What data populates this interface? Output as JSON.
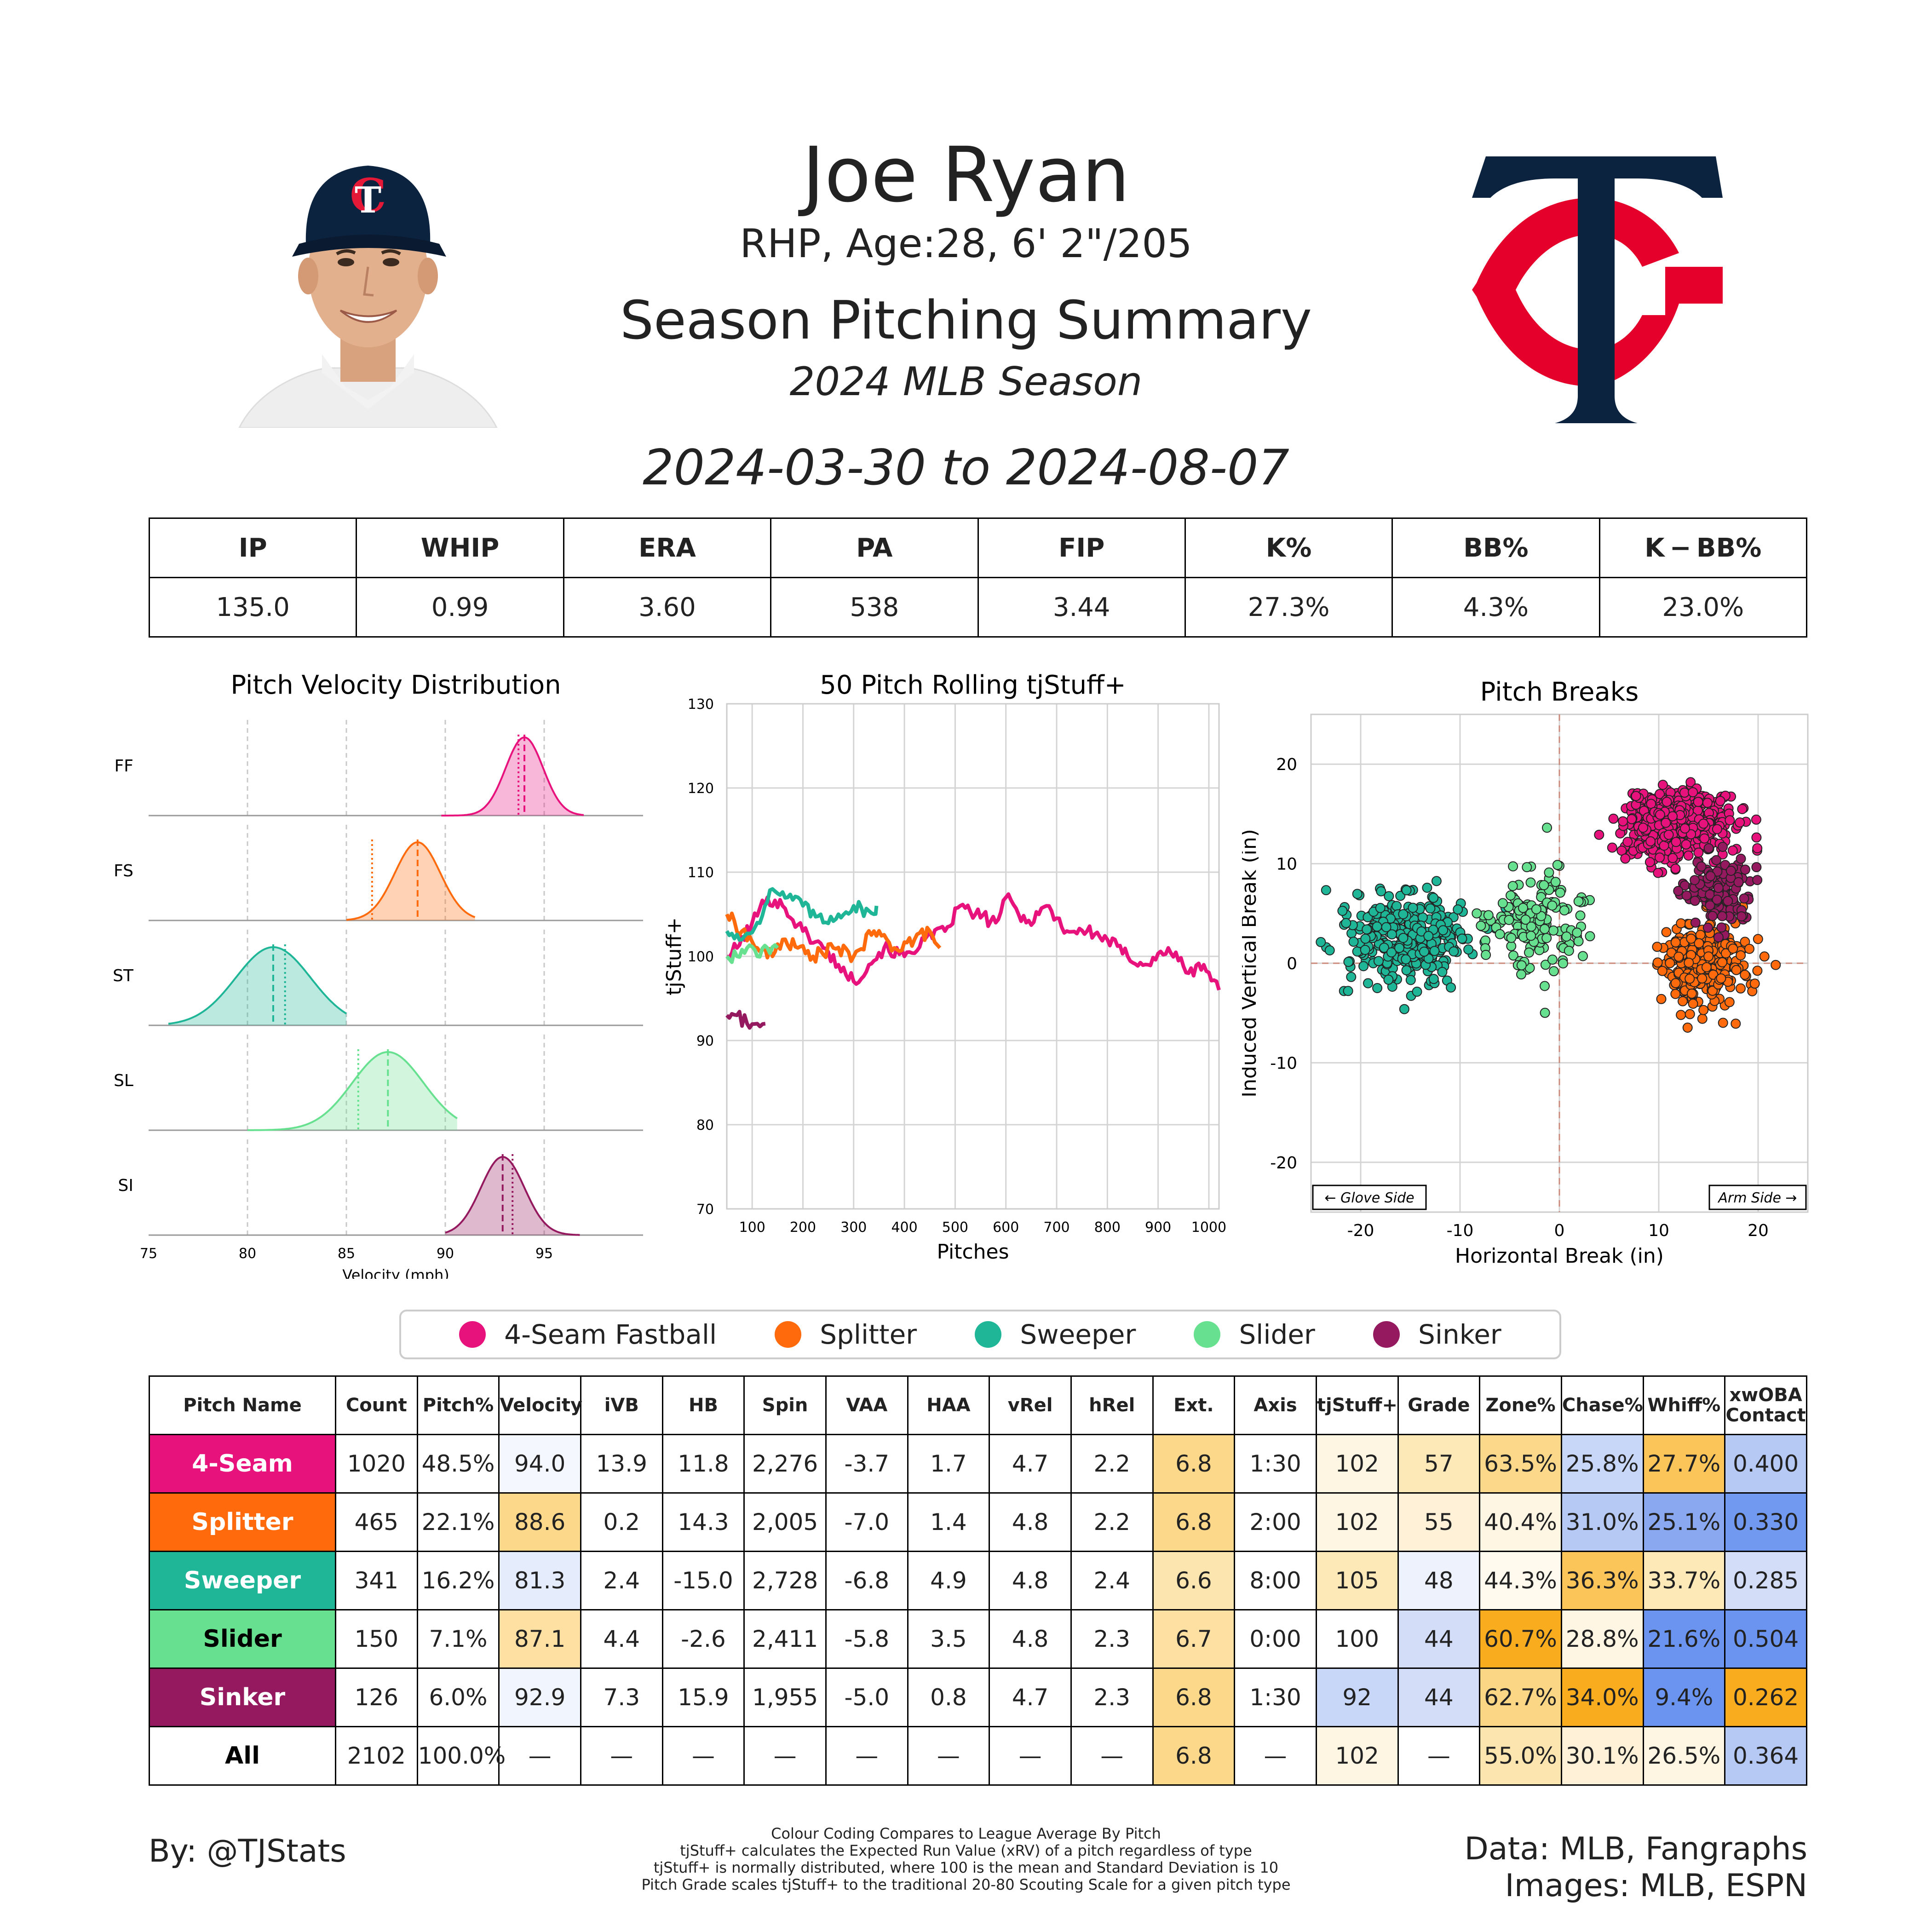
{
  "header": {
    "name": "Joe Ryan",
    "bio": "RHP, Age:28, 6' 2\"/205",
    "summary_title": "Season Pitching Summary",
    "season": "2024 MLB Season",
    "date_range": "2024-03-30 to 2024-08-07"
  },
  "stats": {
    "headers": [
      "IP",
      "WHIP",
      "ERA",
      "PA",
      "FIP",
      "K%",
      "BB%",
      "K − BB%"
    ],
    "values": [
      "135.0",
      "0.99",
      "3.60",
      "538",
      "3.44",
      "27.3%",
      "4.3%",
      "23.0%"
    ]
  },
  "pitch_colors": {
    "FF": "#e8127d",
    "FS": "#ff6a0d",
    "ST": "#1fb597",
    "SL": "#67e08f",
    "SI": "#94195f"
  },
  "chart_data": [
    {
      "type": "area",
      "title": "Pitch Velocity Distribution",
      "xlabel": "Velocity (mph)",
      "xlim": [
        75,
        100
      ],
      "xticks": [
        75,
        80,
        85,
        90,
        95
      ],
      "series": [
        {
          "name": "FF",
          "mean": 94.0,
          "league_mean": 93.7,
          "sd": 0.95,
          "range": [
            89.8,
            97.0
          ]
        },
        {
          "name": "FS",
          "mean": 88.6,
          "league_mean": 86.3,
          "sd": 1.15,
          "range": [
            85.0,
            91.5
          ]
        },
        {
          "name": "ST",
          "mean": 81.3,
          "league_mean": 81.9,
          "sd": 1.9,
          "range": [
            76.0,
            85.0
          ]
        },
        {
          "name": "SL",
          "mean": 87.1,
          "league_mean": 85.6,
          "sd": 1.8,
          "range": [
            80.0,
            90.6
          ]
        },
        {
          "name": "SI",
          "mean": 92.9,
          "league_mean": 93.4,
          "sd": 1.1,
          "range": [
            90.0,
            96.8
          ]
        }
      ]
    },
    {
      "type": "line",
      "title": "50 Pitch Rolling tjStuff+",
      "xlabel": "Pitches",
      "ylabel": "tjStuff+",
      "xlim": [
        50,
        1020
      ],
      "ylim": [
        70,
        130
      ],
      "xticks": [
        100,
        200,
        300,
        400,
        500,
        600,
        700,
        800,
        900,
        1000
      ],
      "yticks": [
        70,
        80,
        90,
        100,
        110,
        120,
        130
      ],
      "series": [
        {
          "name": "FF",
          "points": [
            [
              50,
              100
            ],
            [
              70,
              101
            ],
            [
              100,
              104
            ],
            [
              130,
              107
            ],
            [
              160,
              106
            ],
            [
              200,
              103
            ],
            [
              240,
              101
            ],
            [
              270,
              99
            ],
            [
              300,
              97
            ],
            [
              330,
              99
            ],
            [
              360,
              101
            ],
            [
              400,
              100
            ],
            [
              440,
              102
            ],
            [
              480,
              103
            ],
            [
              510,
              106
            ],
            [
              540,
              105
            ],
            [
              580,
              104
            ],
            [
              600,
              107
            ],
            [
              640,
              104
            ],
            [
              680,
              106
            ],
            [
              720,
              103
            ],
            [
              760,
              103
            ],
            [
              800,
              102
            ],
            [
              840,
              100
            ],
            [
              880,
              99
            ],
            [
              920,
              101
            ],
            [
              960,
              98
            ],
            [
              990,
              99
            ],
            [
              1020,
              96
            ]
          ]
        },
        {
          "name": "FS",
          "points": [
            [
              50,
              105
            ],
            [
              80,
              103
            ],
            [
              110,
              101
            ],
            [
              140,
              100
            ],
            [
              160,
              102
            ],
            [
              190,
              101
            ],
            [
              220,
              100
            ],
            [
              260,
              101
            ],
            [
              300,
              100
            ],
            [
              340,
              103
            ],
            [
              380,
              101
            ],
            [
              420,
              102
            ],
            [
              450,
              103
            ],
            [
              470,
              101
            ]
          ]
        },
        {
          "name": "ST",
          "points": [
            [
              50,
              103
            ],
            [
              80,
              102
            ],
            [
              110,
              104
            ],
            [
              140,
              108
            ],
            [
              170,
              107
            ],
            [
              200,
              106
            ],
            [
              240,
              104
            ],
            [
              270,
              105
            ],
            [
              300,
              106
            ],
            [
              340,
              105
            ],
            [
              345,
              106
            ]
          ]
        },
        {
          "name": "SL",
          "points": [
            [
              50,
              100
            ],
            [
              70,
              100
            ],
            [
              90,
              101
            ],
            [
              110,
              100
            ],
            [
              130,
              101
            ],
            [
              150,
              101
            ]
          ]
        },
        {
          "name": "SI",
          "points": [
            [
              50,
              93
            ],
            [
              70,
              93
            ],
            [
              90,
              92
            ],
            [
              110,
              92
            ],
            [
              126,
              92
            ]
          ]
        }
      ]
    },
    {
      "type": "scatter",
      "title": "Pitch Breaks",
      "xlabel": "Horizontal Break (in)",
      "ylabel": "Induced Vertical Break (in)",
      "xlim": [
        -25,
        25
      ],
      "ylim": [
        -25,
        25
      ],
      "xticks": [
        -20,
        -10,
        0,
        10,
        20
      ],
      "yticks": [
        -20,
        -10,
        0,
        10,
        20
      ],
      "annotations": [
        "← Glove Side",
        "Arm Side →"
      ],
      "series": [
        {
          "name": "FF",
          "center": [
            11.8,
            13.9
          ],
          "spread": [
            2.6,
            1.7
          ],
          "n": 520
        },
        {
          "name": "FS",
          "center": [
            14.3,
            0.2
          ],
          "spread": [
            2.2,
            2.1
          ],
          "n": 300
        },
        {
          "name": "ST",
          "center": [
            -15.0,
            2.4
          ],
          "spread": [
            3.2,
            2.4
          ],
          "n": 320
        },
        {
          "name": "SL",
          "center": [
            -2.6,
            4.4
          ],
          "spread": [
            2.4,
            2.5
          ],
          "n": 150
        },
        {
          "name": "SI",
          "center": [
            15.9,
            7.3
          ],
          "spread": [
            1.7,
            1.8
          ],
          "n": 126
        }
      ]
    }
  ],
  "legend": [
    {
      "code": "FF",
      "label": "4-Seam Fastball"
    },
    {
      "code": "FS",
      "label": "Splitter"
    },
    {
      "code": "ST",
      "label": "Sweeper"
    },
    {
      "code": "SL",
      "label": "Slider"
    },
    {
      "code": "SI",
      "label": "Sinker"
    }
  ],
  "pitch_table": {
    "headers": [
      "Pitch Name",
      "Count",
      "Pitch%",
      "Velocity",
      "iVB",
      "HB",
      "Spin",
      "VAA",
      "HAA",
      "vRel",
      "hRel",
      "Ext.",
      "Axis",
      "tjStuff+",
      "Grade",
      "Zone%",
      "Chase%",
      "Whiff%",
      "xwOBA Contact"
    ],
    "rows": [
      {
        "name": "4-Seam",
        "bg": "#e8127d",
        "text": "#ffffff",
        "cells": [
          "1020",
          "48.5%",
          "94.0",
          "13.9",
          "11.8",
          "2,276",
          "-3.7",
          "1.7",
          "4.7",
          "2.2",
          "6.8",
          "1:30",
          "102",
          "57",
          "63.5%",
          "25.8%",
          "27.7%",
          "0.400"
        ],
        "colors": [
          "",
          "",
          "#f4f7fd",
          "",
          "",
          "",
          "",
          "",
          "",
          "",
          "#fcd98a",
          "",
          "#fff5e3",
          "#fde8b8",
          "#fcd98a",
          "#c8d6f7",
          "#fbc55a",
          "#b6c9f5"
        ]
      },
      {
        "name": "Splitter",
        "bg": "#ff6a0d",
        "text": "#ffffff",
        "cells": [
          "465",
          "22.1%",
          "88.6",
          "0.2",
          "14.3",
          "2,005",
          "-7.0",
          "1.4",
          "4.8",
          "2.2",
          "6.8",
          "2:00",
          "102",
          "55",
          "40.4%",
          "31.0%",
          "25.1%",
          "0.330"
        ],
        "colors": [
          "",
          "",
          "#fcd98a",
          "",
          "",
          "",
          "",
          "",
          "",
          "",
          "#fcd98a",
          "",
          "#fff5e3",
          "#fff1d8",
          "#fff5e3",
          "#b6c9f5",
          "#8aa8f0",
          "#7199ef"
        ]
      },
      {
        "name": "Sweeper",
        "bg": "#1fb597",
        "text": "#ffffff",
        "cells": [
          "341",
          "16.2%",
          "81.3",
          "2.4",
          "-15.0",
          "2,728",
          "-6.8",
          "4.9",
          "4.8",
          "2.4",
          "6.6",
          "8:00",
          "105",
          "48",
          "44.3%",
          "36.3%",
          "33.7%",
          "0.285"
        ],
        "colors": [
          "",
          "",
          "#e5ecfb",
          "",
          "",
          "",
          "",
          "",
          "",
          "",
          "#fde5b0",
          "",
          "#fde8b8",
          "#eef2fc",
          "#fff9ee",
          "#fbc55a",
          "#fde8b8",
          "#d3ddf8"
        ]
      },
      {
        "name": "Slider",
        "bg": "#67e08f",
        "text": "#000000",
        "cells": [
          "150",
          "7.1%",
          "87.1",
          "4.4",
          "-2.6",
          "2,411",
          "-5.8",
          "3.5",
          "4.8",
          "2.3",
          "6.7",
          "0:00",
          "100",
          "44",
          "60.7%",
          "28.8%",
          "21.6%",
          "0.504"
        ],
        "colors": [
          "",
          "",
          "#fde0a2",
          "",
          "",
          "",
          "",
          "",
          "",
          "",
          "#fde0a2",
          "",
          "#ffffff",
          "#d3ddf8",
          "#f9ad1e",
          "#fff5e3",
          "#6a94ef",
          "#6a94ef"
        ]
      },
      {
        "name": "Sinker",
        "bg": "#94195f",
        "text": "#ffffff",
        "cells": [
          "126",
          "6.0%",
          "92.9",
          "7.3",
          "15.9",
          "1,955",
          "-5.0",
          "0.8",
          "4.7",
          "2.3",
          "6.8",
          "1:30",
          "92",
          "44",
          "62.7%",
          "34.0%",
          "9.4%",
          "0.262"
        ],
        "colors": [
          "",
          "",
          "#f1f5fd",
          "",
          "",
          "",
          "",
          "",
          "",
          "",
          "#fcd98a",
          "",
          "#c8d6f7",
          "#d3ddf8",
          "#fbd684",
          "#f9ad1e",
          "#6a94ef",
          "#f9ad1e"
        ]
      },
      {
        "name": "All",
        "bg": "#ffffff",
        "text": "#000000",
        "cells": [
          "2102",
          "100.0%",
          "—",
          "—",
          "—",
          "—",
          "—",
          "—",
          "—",
          "—",
          "6.8",
          "—",
          "102",
          "—",
          "55.0%",
          "30.1%",
          "26.5%",
          "0.364"
        ],
        "colors": [
          "",
          "",
          "",
          "",
          "",
          "",
          "",
          "",
          "",
          "",
          "#fcd98a",
          "",
          "#fff5e3",
          "",
          "#fde5b0",
          "#fff1d8",
          "#fff5e3",
          "#b6c9f5"
        ]
      }
    ]
  },
  "footer": {
    "byline": "By: @TJStats",
    "notes": [
      "Colour Coding Compares to League Average By Pitch",
      "tjStuff+ calculates the Expected Run Value (xRV) of a pitch regardless of type",
      "tjStuff+ is normally distributed, where 100 is the mean and Standard Deviation is 10",
      "Pitch Grade scales tjStuff+ to the traditional 20-80 Scouting Scale for a given pitch type"
    ],
    "credits_1": "Data: MLB, Fangraphs",
    "credits_2": "Images: MLB, ESPN"
  }
}
